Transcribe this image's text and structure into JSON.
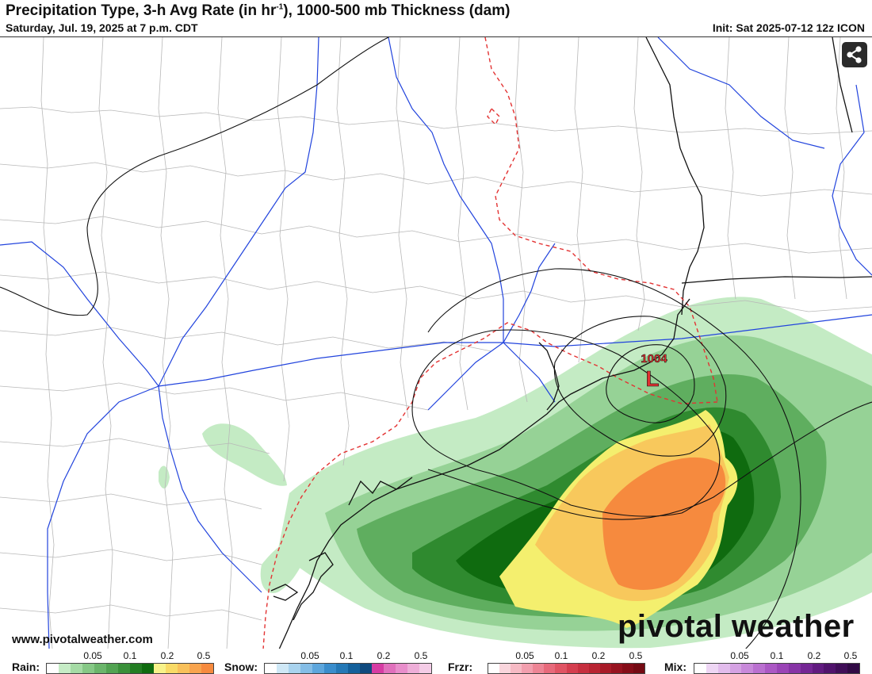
{
  "header": {
    "title_main": "Precipitation Type, 3-h Avg Rate (in hr",
    "title_sup": "-1",
    "title_tail": "), 1000-500 mb Thickness (dam)",
    "valid_time": "Saturday, Jul. 19, 2025 at 7 p.m. CDT",
    "init_time": "Init: Sat 2025-07-12 12z ICON"
  },
  "map": {
    "low_pressure_label": "1004",
    "low_pressure_symbol": "L",
    "share_icon": "share-icon",
    "colors": {
      "state_border": "#111111",
      "county_border": "#b0b0b0",
      "highway": "#2244dd",
      "freezing_line": "#e33333",
      "thickness_contour": "#111111",
      "low_label": "#e03030"
    }
  },
  "branding": {
    "website": "www.pivotalweather.com",
    "logo_text": "pivotal weather"
  },
  "legend": {
    "rain": {
      "label": "Rain:",
      "ticks": [
        "0.05",
        "0.1",
        "0.2",
        "0.5"
      ],
      "colors": [
        "#ffffff",
        "#c6ecc6",
        "#a5dba5",
        "#86c886",
        "#6bb56b",
        "#52a352",
        "#3a903a",
        "#237d23",
        "#0f6b0f",
        "#f7f28a",
        "#f8da66",
        "#f8c05a",
        "#f8a44e",
        "#f68a3e"
      ]
    },
    "snow": {
      "label": "Snow:",
      "ticks": [
        "0.05",
        "0.1",
        "0.2",
        "0.5"
      ],
      "colors": [
        "#ffffff",
        "#cfe8f6",
        "#a9d3ee",
        "#84bde6",
        "#5da6dc",
        "#3a8dcc",
        "#2478b6",
        "#13609b",
        "#0f4a7e",
        "#d63ca3",
        "#e070bc",
        "#e88ecb",
        "#eeaed8",
        "#f4cce6"
      ]
    },
    "frzr": {
      "label": "Frzr:",
      "ticks": [
        "0.05",
        "0.1",
        "0.2",
        "0.5"
      ],
      "colors": [
        "#ffffff",
        "#f9d5dc",
        "#f6bac4",
        "#f29fae",
        "#ed8595",
        "#e76a7b",
        "#e05464",
        "#d43e4f",
        "#c62f3f",
        "#b82432",
        "#a81b28",
        "#971320",
        "#850d18",
        "#740a13"
      ]
    },
    "mix": {
      "label": "Mix:",
      "ticks": [
        "0.05",
        "0.1",
        "0.2",
        "0.5"
      ],
      "colors": [
        "#ffffff",
        "#eed6f4",
        "#e2bcec",
        "#d5a2e3",
        "#c889da",
        "#ba70d0",
        "#ab58c4",
        "#9a44b6",
        "#8734a6",
        "#742694",
        "#611b80",
        "#50136c",
        "#400e58",
        "#310a45"
      ]
    }
  }
}
